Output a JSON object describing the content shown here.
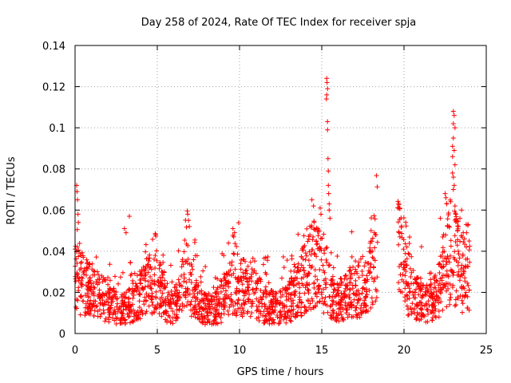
{
  "chart_data": {
    "type": "scatter",
    "title": "Day 258 of 2024, Rate Of TEC Index for receiver spja",
    "xlabel": "GPS time / hours",
    "ylabel": "ROTI / TECUs",
    "xlim": [
      0,
      25
    ],
    "ylim": [
      0,
      0.14
    ],
    "grid": true,
    "marker": "+",
    "color": "#ff0000",
    "x_ticks": [
      0,
      5,
      10,
      15,
      20,
      25
    ],
    "x_tick_labels": [
      "0",
      "5",
      "10",
      "15",
      "20",
      "25"
    ],
    "y_ticks": [
      0,
      0.02,
      0.04,
      0.06,
      0.08,
      0.1,
      0.12,
      0.14
    ],
    "y_tick_labels": [
      "0",
      "0.02",
      "0.04",
      "0.06",
      "0.08",
      "0.1",
      "0.12",
      "0.14"
    ],
    "series": [
      {
        "name": "ROTI",
        "segments": [
          {
            "start": 0.0,
            "end": 8.5,
            "envelope": [
              [
                0.0,
                0.028
              ],
              [
                0.3,
                0.025
              ],
              [
                0.8,
                0.022
              ],
              [
                1.5,
                0.018
              ],
              [
                2.2,
                0.014
              ],
              [
                2.8,
                0.012
              ],
              [
                3.3,
                0.014
              ],
              [
                3.8,
                0.018
              ],
              [
                4.3,
                0.022
              ],
              [
                4.9,
                0.03
              ],
              [
                5.3,
                0.02
              ],
              [
                5.8,
                0.012
              ],
              [
                6.3,
                0.016
              ],
              [
                6.8,
                0.03
              ],
              [
                7.2,
                0.018
              ],
              [
                7.8,
                0.012
              ],
              [
                8.5,
                0.012
              ]
            ]
          },
          {
            "start": 8.5,
            "end": 13.5,
            "envelope": [
              [
                8.5,
                0.012
              ],
              [
                9.2,
                0.018
              ],
              [
                9.7,
                0.025
              ],
              [
                10.3,
                0.022
              ],
              [
                10.8,
                0.02
              ],
              [
                11.5,
                0.014
              ],
              [
                12.3,
                0.012
              ],
              [
                13.0,
                0.015
              ],
              [
                13.5,
                0.02
              ]
            ]
          },
          {
            "start": 13.5,
            "end": 15.8,
            "envelope": [
              [
                13.5,
                0.02
              ],
              [
                14.0,
                0.028
              ],
              [
                14.5,
                0.035
              ],
              [
                15.0,
                0.03
              ],
              [
                15.3,
                0.025
              ],
              [
                15.8,
                0.015
              ]
            ]
          },
          {
            "start": 15.8,
            "end": 18.4,
            "envelope": [
              [
                15.8,
                0.015
              ],
              [
                16.5,
                0.018
              ],
              [
                17.0,
                0.022
              ],
              [
                17.6,
                0.02
              ],
              [
                18.0,
                0.028
              ],
              [
                18.4,
                0.045
              ]
            ]
          },
          {
            "start": 19.6,
            "end": 22.3,
            "envelope": [
              [
                19.6,
                0.042
              ],
              [
                20.0,
                0.03
              ],
              [
                20.5,
                0.02
              ],
              [
                21.0,
                0.016
              ],
              [
                21.5,
                0.014
              ],
              [
                22.0,
                0.018
              ],
              [
                22.3,
                0.025
              ]
            ]
          },
          {
            "start": 22.3,
            "end": 24.0,
            "envelope": [
              [
                22.3,
                0.03
              ],
              [
                22.8,
                0.04
              ],
              [
                23.2,
                0.035
              ],
              [
                23.6,
                0.028
              ],
              [
                24.0,
                0.03
              ]
            ]
          }
        ],
        "spikes": [
          {
            "x": 0.1,
            "y": 0.072
          },
          {
            "x": 0.12,
            "y": 0.069
          },
          {
            "x": 0.15,
            "y": 0.065
          },
          {
            "x": 0.18,
            "y": 0.058
          },
          {
            "x": 0.2,
            "y": 0.054
          },
          {
            "x": 3.3,
            "y": 0.057
          },
          {
            "x": 3.0,
            "y": 0.051
          },
          {
            "x": 3.1,
            "y": 0.049
          },
          {
            "x": 6.85,
            "y": 0.058
          },
          {
            "x": 6.9,
            "y": 0.055
          },
          {
            "x": 6.95,
            "y": 0.052
          },
          {
            "x": 9.6,
            "y": 0.051
          },
          {
            "x": 9.7,
            "y": 0.049
          },
          {
            "x": 9.65,
            "y": 0.047
          },
          {
            "x": 14.4,
            "y": 0.065
          },
          {
            "x": 14.5,
            "y": 0.062
          },
          {
            "x": 14.9,
            "y": 0.061
          },
          {
            "x": 14.95,
            "y": 0.058
          },
          {
            "x": 15.3,
            "y": 0.124
          },
          {
            "x": 15.32,
            "y": 0.122
          },
          {
            "x": 15.35,
            "y": 0.119
          },
          {
            "x": 15.3,
            "y": 0.116
          },
          {
            "x": 15.28,
            "y": 0.114
          },
          {
            "x": 15.35,
            "y": 0.103
          },
          {
            "x": 15.35,
            "y": 0.099
          },
          {
            "x": 15.38,
            "y": 0.085
          },
          {
            "x": 15.4,
            "y": 0.079
          },
          {
            "x": 15.4,
            "y": 0.072
          },
          {
            "x": 15.42,
            "y": 0.068
          },
          {
            "x": 15.45,
            "y": 0.063
          },
          {
            "x": 15.45,
            "y": 0.06
          },
          {
            "x": 15.5,
            "y": 0.056
          },
          {
            "x": 18.0,
            "y": 0.05
          },
          {
            "x": 18.2,
            "y": 0.049
          },
          {
            "x": 18.3,
            "y": 0.048
          },
          {
            "x": 19.7,
            "y": 0.049
          },
          {
            "x": 19.75,
            "y": 0.047
          },
          {
            "x": 22.5,
            "y": 0.068
          },
          {
            "x": 22.55,
            "y": 0.066
          },
          {
            "x": 22.6,
            "y": 0.063
          },
          {
            "x": 23.0,
            "y": 0.108
          },
          {
            "x": 23.05,
            "y": 0.106
          },
          {
            "x": 23.0,
            "y": 0.102
          },
          {
            "x": 23.1,
            "y": 0.1
          },
          {
            "x": 23.0,
            "y": 0.095
          },
          {
            "x": 22.95,
            "y": 0.091
          },
          {
            "x": 23.05,
            "y": 0.089
          },
          {
            "x": 22.95,
            "y": 0.086
          },
          {
            "x": 23.1,
            "y": 0.082
          },
          {
            "x": 22.95,
            "y": 0.078
          },
          {
            "x": 23.0,
            "y": 0.076
          },
          {
            "x": 23.05,
            "y": 0.072
          },
          {
            "x": 23.0,
            "y": 0.07
          },
          {
            "x": 23.1,
            "y": 0.062
          },
          {
            "x": 23.15,
            "y": 0.058
          },
          {
            "x": 23.2,
            "y": 0.055
          },
          {
            "x": 23.3,
            "y": 0.052
          },
          {
            "x": 23.5,
            "y": 0.06
          },
          {
            "x": 23.4,
            "y": 0.056
          },
          {
            "x": 23.6,
            "y": 0.049
          },
          {
            "x": 23.9,
            "y": 0.053
          },
          {
            "x": 23.8,
            "y": 0.049
          }
        ]
      }
    ]
  }
}
